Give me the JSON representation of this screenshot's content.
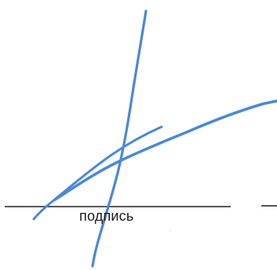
{
  "signature_block": {
    "caption": "подпись",
    "line_color": "#1f1f1f",
    "ink_color": "#4a88d6"
  }
}
